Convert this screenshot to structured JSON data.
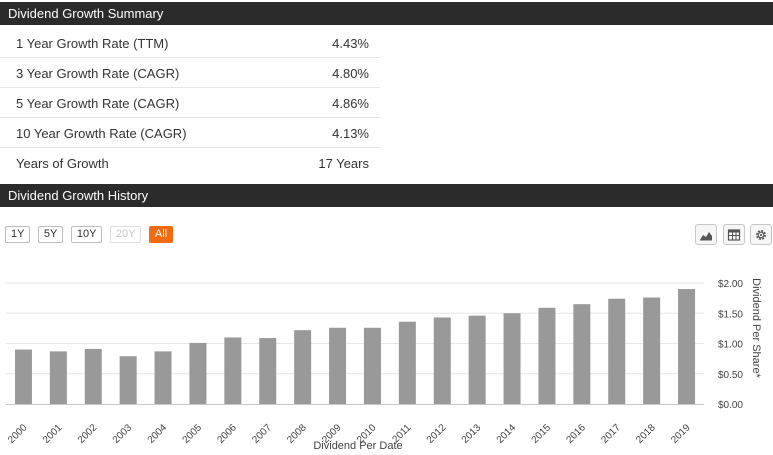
{
  "summary": {
    "title": "Dividend Growth Summary",
    "rows": [
      {
        "label": "1 Year Growth Rate (TTM)",
        "value": "4.43%"
      },
      {
        "label": "3 Year Growth Rate (CAGR)",
        "value": "4.80%"
      },
      {
        "label": "5 Year Growth Rate (CAGR)",
        "value": "4.86%"
      },
      {
        "label": "10 Year Growth Rate (CAGR)",
        "value": "4.13%"
      },
      {
        "label": "Years of Growth",
        "value": "17 Years"
      }
    ]
  },
  "history": {
    "title": "Dividend Growth History",
    "range_buttons": [
      {
        "label": "1Y",
        "state": "normal"
      },
      {
        "label": "5Y",
        "state": "normal"
      },
      {
        "label": "10Y",
        "state": "normal"
      },
      {
        "label": "20Y",
        "state": "disabled"
      },
      {
        "label": "All",
        "state": "active"
      }
    ],
    "tools": [
      {
        "name": "area-chart-icon"
      },
      {
        "name": "table-icon"
      },
      {
        "name": "gear-icon"
      }
    ]
  },
  "colors": {
    "header_bg": "#2b2b2b",
    "bar": "#999999",
    "active_button": "#f26b10"
  },
  "chart_data": {
    "type": "bar",
    "categories": [
      "2000",
      "2001",
      "2002",
      "2003",
      "2004",
      "2005",
      "2006",
      "2007",
      "2008",
      "2009",
      "2010",
      "2011",
      "2012",
      "2013",
      "2014",
      "2015",
      "2016",
      "2017",
      "2018",
      "2019"
    ],
    "values": [
      0.9,
      0.87,
      0.91,
      0.79,
      0.87,
      1.01,
      1.1,
      1.09,
      1.22,
      1.26,
      1.26,
      1.36,
      1.43,
      1.46,
      1.5,
      1.59,
      1.65,
      1.74,
      1.76,
      1.9
    ],
    "xlabel": "Dividend Per Date",
    "ylabel": "Dividend Per Share*",
    "ylim": [
      0,
      2
    ],
    "yticks": [
      {
        "value": 0,
        "label": "$0.00"
      },
      {
        "value": 0.5,
        "label": "$0.50"
      },
      {
        "value": 1,
        "label": "$1.00"
      },
      {
        "value": 1.5,
        "label": "$1.50"
      },
      {
        "value": 2,
        "label": "$2.00"
      }
    ],
    "y_axis_position": "right",
    "grid": true,
    "legend": "none"
  }
}
